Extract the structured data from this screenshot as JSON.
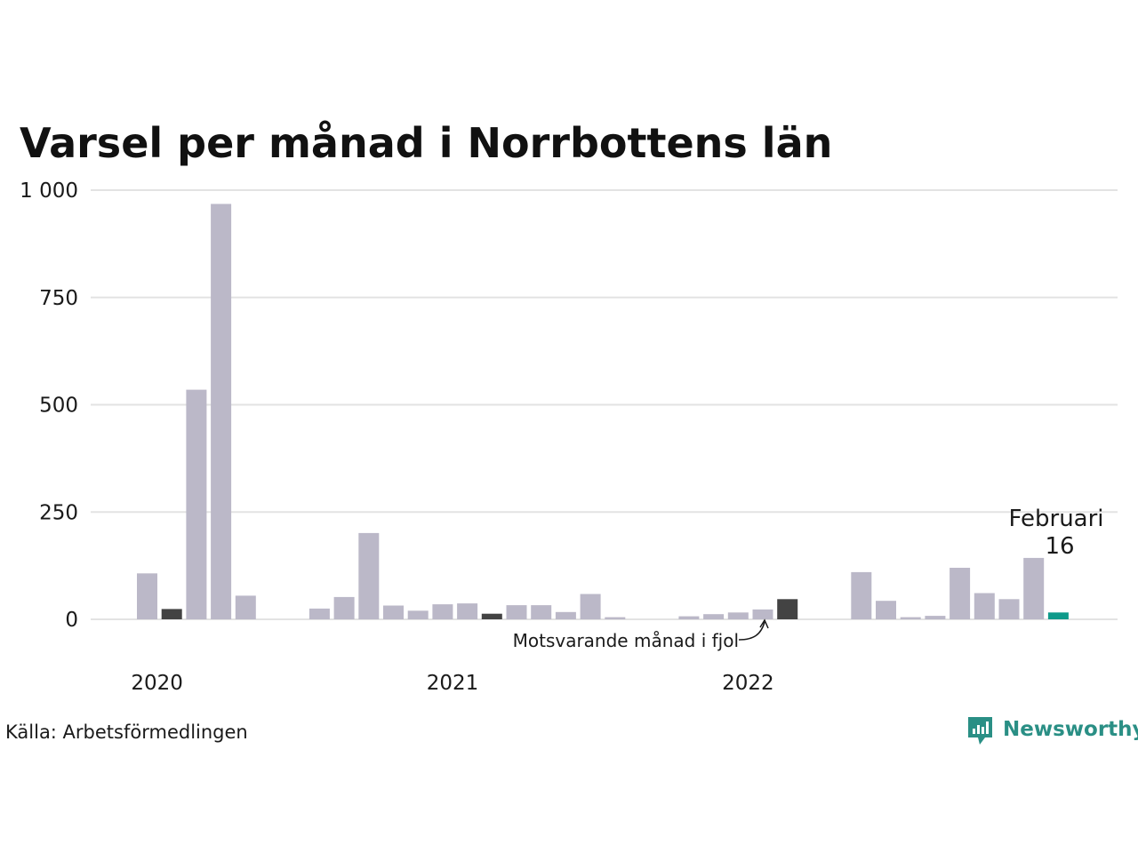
{
  "chart_data": {
    "type": "bar",
    "title": "Varsel per månad i Norrbottens län",
    "xlabel": "",
    "ylabel": "",
    "ylim": [
      0,
      1000
    ],
    "yticks": [
      {
        "value": 0,
        "label": "0"
      },
      {
        "value": 250,
        "label": "250"
      },
      {
        "value": 500,
        "label": "500"
      },
      {
        "value": 750,
        "label": "750"
      },
      {
        "value": 1000,
        "label": "1 000"
      }
    ],
    "year_labels": [
      {
        "label": "2020",
        "index": 0.4
      },
      {
        "label": "2021",
        "index": 12.4
      },
      {
        "label": "2022",
        "index": 24.4
      }
    ],
    "grid": true,
    "legend": "none",
    "values": [
      107,
      24,
      535,
      968,
      55,
      null,
      null,
      25,
      52,
      201,
      32,
      20,
      35,
      37,
      13,
      33,
      33,
      17,
      59,
      5,
      null,
      null,
      7,
      12,
      16,
      23,
      47,
      null,
      null,
      110,
      43,
      5,
      8,
      120,
      61,
      47,
      143,
      16
    ],
    "highlight_indices": [
      1,
      14,
      26
    ],
    "current_index": 37,
    "colors": {
      "default": "#bbb8c8",
      "highlight": "#434343",
      "current": "#0e9a8a"
    },
    "annotations": {
      "comparison_label": "Motsvarande månad i fjol",
      "current_month": "Februari",
      "current_value": "16"
    }
  },
  "footer": {
    "source": "Källa: Arbetsförmedlingen",
    "brand": "Newsworthy",
    "brand_icon": "newsworthy-chart-icon",
    "brand_color": "#2a8f85"
  }
}
